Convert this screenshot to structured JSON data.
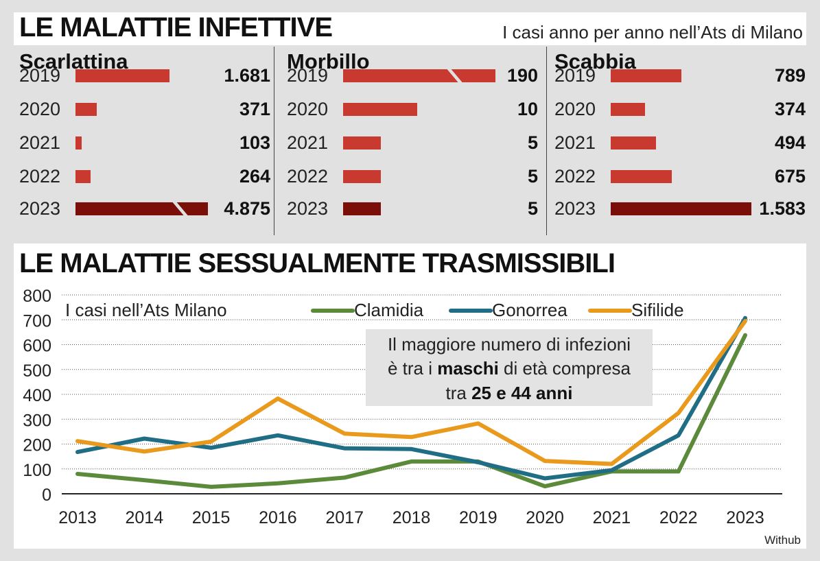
{
  "header": {
    "title": "LE MALATTIE INFETTIVE",
    "subtitle": "I casi anno per anno nell’Ats di Milano"
  },
  "panels": [
    {
      "name": "Scarlattina",
      "rows": [
        {
          "year": "2019",
          "label": "1.681",
          "value": 1681
        },
        {
          "year": "2020",
          "label": "371",
          "value": 371
        },
        {
          "year": "2021",
          "label": "103",
          "value": 103
        },
        {
          "year": "2022",
          "label": "264",
          "value": 264
        },
        {
          "year": "2023",
          "label": "4.875",
          "value": 4875
        }
      ]
    },
    {
      "name": "Morbillo",
      "rows": [
        {
          "year": "2019",
          "label": "190",
          "value": 190
        },
        {
          "year": "2020",
          "label": "10",
          "value": 10
        },
        {
          "year": "2021",
          "label": "5",
          "value": 5
        },
        {
          "year": "2022",
          "label": "5",
          "value": 5
        },
        {
          "year": "2023",
          "label": "5",
          "value": 5
        }
      ]
    },
    {
      "name": "Scabbia",
      "rows": [
        {
          "year": "2019",
          "label": "789",
          "value": 789
        },
        {
          "year": "2020",
          "label": "374",
          "value": 374
        },
        {
          "year": "2021",
          "label": "494",
          "value": 494
        },
        {
          "year": "2022",
          "label": "675",
          "value": 675
        },
        {
          "year": "2023",
          "label": "1.583",
          "value": 1583
        }
      ]
    }
  ],
  "colors": {
    "bar": "#c8392f",
    "bar_latest": "#7a0f0a",
    "clamidia": "#5a8a3a",
    "gonorrea": "#1f6e86",
    "sifilide": "#e99a1c"
  },
  "section2": {
    "title": "LE MALATTIE SESSUALMENTE TRASMISSIBILI",
    "annotation_lines": [
      [
        {
          "t": "Il maggiore numero  di infezioni",
          "b": false
        }
      ],
      [
        {
          "t": "è tra i ",
          "b": false
        },
        {
          "t": "maschi",
          "b": true
        },
        {
          "t": " di età compresa",
          "b": false
        }
      ],
      [
        {
          "t": "tra ",
          "b": false
        },
        {
          "t": "25 e 44 anni",
          "b": true
        }
      ]
    ],
    "source": "Withub"
  },
  "chart_data": {
    "type": "line",
    "title": "I casi nell’Ats Milano",
    "x": [
      "2013",
      "2014",
      "2015",
      "2016",
      "2017",
      "2018",
      "2019",
      "2020",
      "2021",
      "2022",
      "2023"
    ],
    "ylim": [
      0,
      800
    ],
    "yticks": [
      0,
      100,
      200,
      300,
      400,
      500,
      600,
      700,
      800
    ],
    "grid": true,
    "legend": "top",
    "series": [
      {
        "name": "Clamidia",
        "color": "#5a8a3a",
        "values": [
          80,
          55,
          28,
          42,
          65,
          130,
          130,
          30,
          90,
          90,
          638
        ]
      },
      {
        "name": "Gonorrea",
        "color": "#1f6e86",
        "values": [
          168,
          222,
          185,
          235,
          183,
          180,
          127,
          62,
          95,
          235,
          707
        ]
      },
      {
        "name": "Sifilide",
        "color": "#e99a1c",
        "values": [
          212,
          170,
          210,
          383,
          242,
          228,
          283,
          132,
          120,
          325,
          695
        ]
      }
    ]
  }
}
